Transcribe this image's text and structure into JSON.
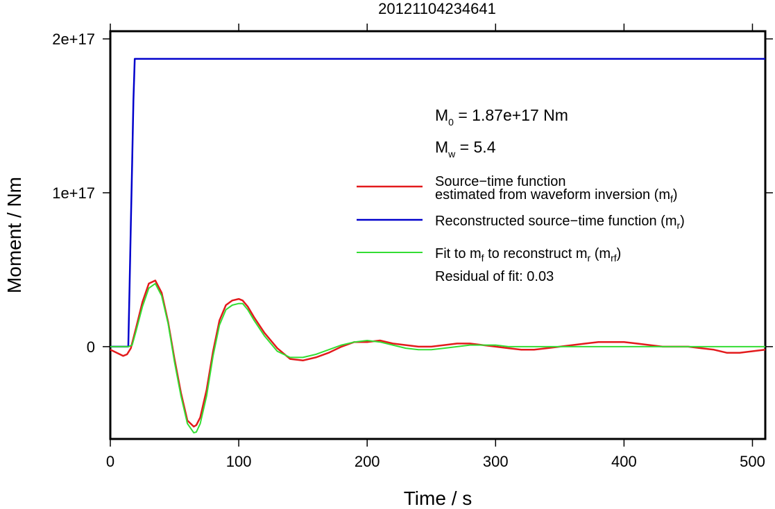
{
  "chart_data": {
    "type": "line",
    "title": "20121104234641",
    "xlabel": "Time / s",
    "ylabel": "Moment / Nm",
    "xlim": [
      0,
      510
    ],
    "ylim": [
      -6e+16,
      2.05e+17
    ],
    "xticks": [
      0,
      100,
      200,
      300,
      400,
      500
    ],
    "xtick_labels": [
      "0",
      "100",
      "200",
      "300",
      "400",
      "500"
    ],
    "yticks": [
      0,
      1e+17,
      2e+17
    ],
    "ytick_labels": [
      "0",
      "1e+17",
      "2e+17"
    ],
    "grid": false,
    "legend_position": "right",
    "annotations": {
      "m0_label": "M",
      "m0_sub": "0",
      "m0_value": " = 1.87e+17 Nm",
      "mw_label": "M",
      "mw_sub": "w",
      "mw_value": " = 5.4",
      "residual": "Residual of fit: 0.03"
    },
    "legend": {
      "red_line1": "Source−time function",
      "red_line2": "estimated from waveform inversion (m",
      "red_sub": "f",
      "red_end": ")",
      "blue_text": "Reconstructed source−time function (m",
      "blue_sub": "r",
      "blue_end": ")",
      "green_a": "Fit to m",
      "green_sub1": "f",
      "green_b": " to reconstruct m",
      "green_sub2": "r",
      "green_c": " (m",
      "green_sub3": "rf",
      "green_d": ")"
    },
    "series": [
      {
        "color": "#e31a1c",
        "x": [
          0,
          5,
          10,
          13,
          16,
          20,
          25,
          30,
          35,
          40,
          45,
          50,
          55,
          60,
          65,
          67,
          70,
          75,
          80,
          85,
          90,
          95,
          100,
          103,
          107,
          112,
          120,
          130,
          140,
          150,
          160,
          170,
          180,
          190,
          200,
          210,
          220,
          230,
          240,
          250,
          260,
          270,
          280,
          290,
          300,
          310,
          320,
          330,
          340,
          350,
          360,
          370,
          380,
          390,
          400,
          410,
          420,
          430,
          440,
          450,
          460,
          470,
          480,
          490,
          500,
          510
        ],
        "values": [
          -2000000000000000.0,
          -4000000000000000.0,
          -6000000000000000.0,
          -5000000000000000.0,
          -1000000000000000.0,
          1.2e+16,
          2.9e+16,
          4.1e+16,
          4.3e+16,
          3.5e+16,
          1.6e+16,
          -8000000000000000.0,
          -3e+16,
          -4.8e+16,
          -5.2e+16,
          -5.1e+16,
          -4.6e+16,
          -2.8e+16,
          -3000000000000000.0,
          1.7e+16,
          2.7e+16,
          3e+16,
          3.1e+16,
          3e+16,
          2.6e+16,
          1.9e+16,
          9000000000000000.0,
          -1000000000000000.0,
          -8000000000000000.0,
          -9000000000000000.0,
          -7000000000000000.0,
          -4000000000000000.0,
          0,
          3000000000000000.0,
          3000000000000000.0,
          4000000000000000.0,
          2000000000000000.0,
          1000000000000000.0,
          0,
          0,
          1000000000000000.0,
          2000000000000000.0,
          2000000000000000.0,
          1000000000000000.0,
          0,
          -1000000000000000.0,
          -2000000000000000.0,
          -2000000000000000.0,
          -1000000000000000.0,
          0,
          1000000000000000.0,
          2000000000000000.0,
          3000000000000000.0,
          3000000000000000.0,
          3000000000000000.0,
          2000000000000000.0,
          1000000000000000.0,
          0,
          0,
          0,
          -1000000000000000.0,
          -2000000000000000.0,
          -4000000000000000.0,
          -4000000000000000.0,
          -3000000000000000.0,
          -2000000000000000.0
        ]
      },
      {
        "color": "#0000cc",
        "x": [
          0,
          14,
          15,
          16,
          17,
          18,
          19,
          510
        ],
        "values": [
          0,
          0,
          4e+16,
          8e+16,
          1.2e+17,
          1.6e+17,
          1.87e+17,
          1.87e+17
        ]
      },
      {
        "color": "#33dd33",
        "x": [
          0,
          14,
          17,
          20,
          25,
          30,
          35,
          40,
          45,
          50,
          55,
          60,
          65,
          67,
          70,
          75,
          80,
          85,
          90,
          95,
          100,
          103,
          107,
          112,
          120,
          130,
          140,
          150,
          160,
          170,
          180,
          190,
          200,
          210,
          220,
          230,
          240,
          250,
          260,
          270,
          280,
          290,
          300,
          310,
          320,
          330,
          340,
          350,
          360,
          370,
          380,
          390,
          400,
          410,
          420,
          430,
          440,
          450,
          460,
          470,
          480,
          490,
          500,
          510
        ],
        "values": [
          0,
          0,
          1000000000000000.0,
          1e+16,
          2.6e+16,
          3.8e+16,
          4.1e+16,
          3.3e+16,
          1.5e+16,
          -1e+16,
          -3.2e+16,
          -5e+16,
          -5.6e+16,
          -5.55e+16,
          -5e+16,
          -3.2e+16,
          -6000000000000000.0,
          1.4e+16,
          2.4e+16,
          2.7e+16,
          2.8e+16,
          2.8e+16,
          2.4e+16,
          1.7e+16,
          7000000000000000.0,
          -3000000000000000.0,
          -7000000000000000.0,
          -7000000000000000.0,
          -5000000000000000.0,
          -2000000000000000.0,
          1000000000000000.0,
          3000000000000000.0,
          4000000000000000.0,
          3000000000000000.0,
          1000000000000000.0,
          -1000000000000000.0,
          -2000000000000000.0,
          -2000000000000000.0,
          -1000000000000000.0,
          0,
          1000000000000000.0,
          1000000000000000.0,
          1000000000000000.0,
          0,
          0,
          0,
          0,
          0,
          0,
          0,
          0,
          0,
          0,
          0,
          0,
          0,
          0,
          0,
          0,
          0,
          0,
          0,
          0,
          0
        ]
      }
    ]
  }
}
